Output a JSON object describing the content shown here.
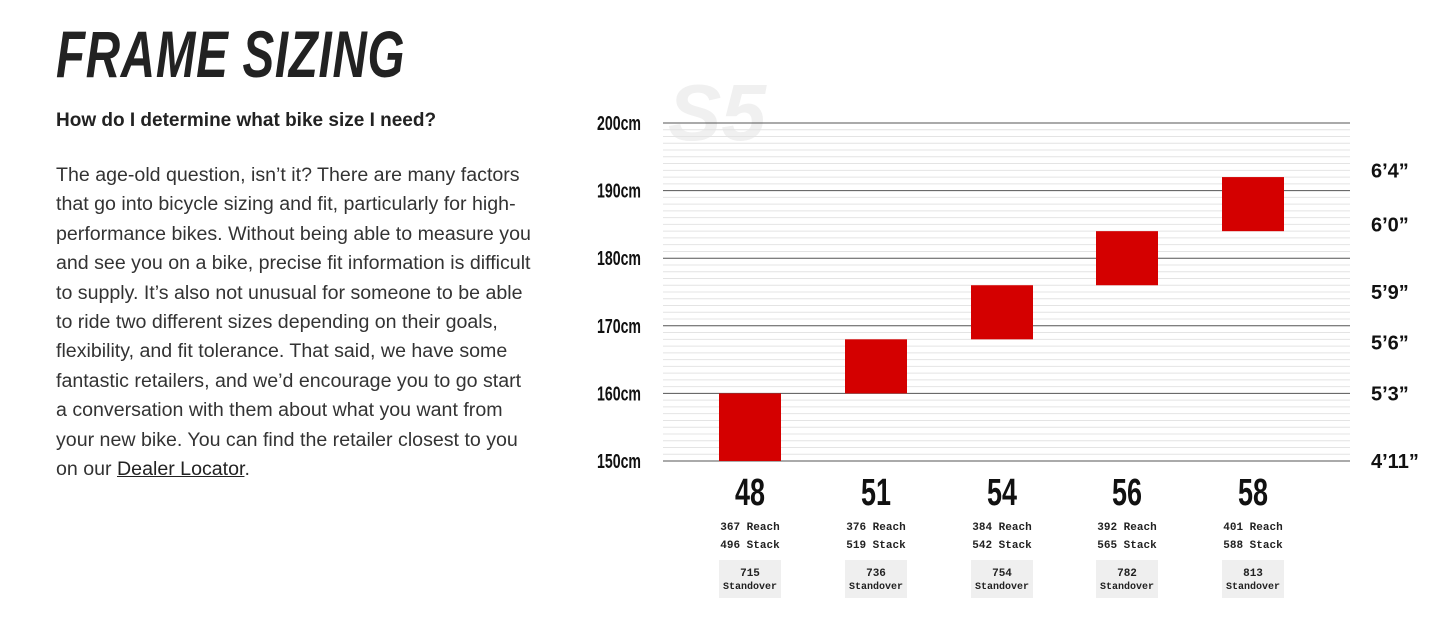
{
  "page": {
    "title": "FRAME SIZING",
    "question": "How do I determine what bike size I need?",
    "body_text": "The age-old question, isn’t it? There are many factors that go into bicycle sizing and fit, particularly for high-performance bikes. Without being able to measure you and see you on a bike, precise fit information is difficult to supply. It’s also not unusual for someone to be able to ride two different sizes depending on their goals, flexibility, and fit tolerance. That said, we have some fantastic retailers, and we’d encourage you to go start a conversation with them about what you want from your new bike. You can find the retailer closest to you on our ",
    "link_text": "Dealer Locator",
    "body_end": "."
  },
  "chart_data": {
    "type": "bar",
    "watermark": "S5",
    "ylim": [
      150,
      200
    ],
    "y_unit": "cm",
    "y_ticks_left": [
      "200cm",
      "190cm",
      "180cm",
      "170cm",
      "160cm",
      "150cm"
    ],
    "y_ticks_left_values": [
      200,
      190,
      180,
      170,
      160,
      150
    ],
    "y_ticks_right": [
      "6’4”",
      "6’0”",
      "5’9”",
      "5’6”",
      "5’3”",
      "4’11”"
    ],
    "y_ticks_right_values": [
      193,
      185,
      175,
      167.5,
      160,
      150
    ],
    "grid": true,
    "bar_color": "#d40000",
    "categories": [
      "48",
      "51",
      "54",
      "56",
      "58"
    ],
    "height_ranges": [
      [
        150,
        160
      ],
      [
        160,
        168
      ],
      [
        168,
        176
      ],
      [
        176,
        184
      ],
      [
        184,
        192
      ]
    ],
    "reach": [
      "367 Reach",
      "376 Reach",
      "384 Reach",
      "392 Reach",
      "401 Reach"
    ],
    "stack": [
      "496 Stack",
      "519 Stack",
      "542 Stack",
      "565 Stack",
      "588 Stack"
    ],
    "standover_values": [
      "715",
      "736",
      "754",
      "782",
      "813"
    ],
    "standover_label": "Standover"
  }
}
